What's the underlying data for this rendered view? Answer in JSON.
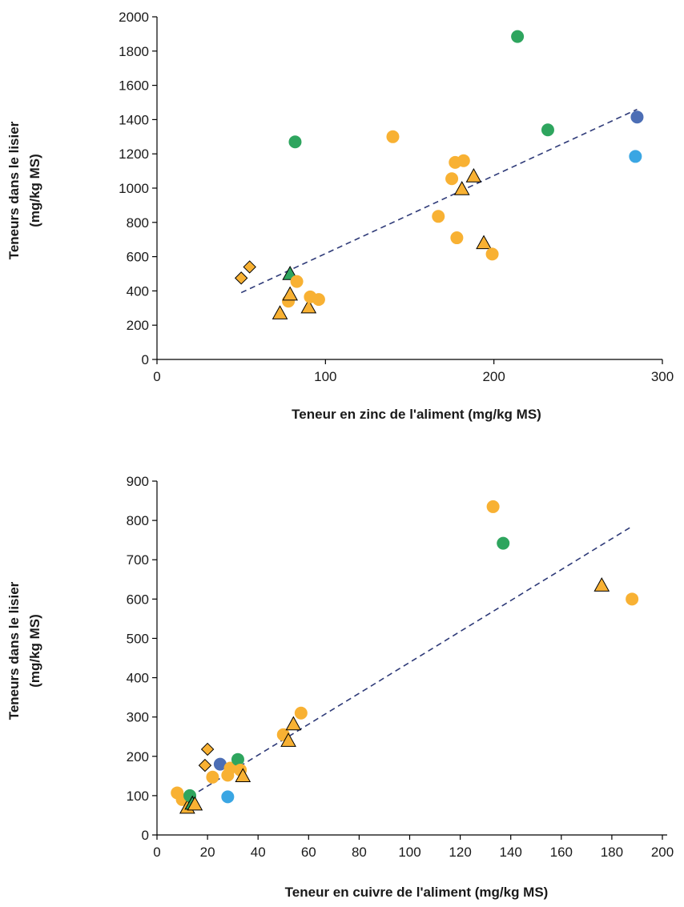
{
  "chart_data": [
    {
      "type": "scatter",
      "title": "",
      "xlabel": "Teneur en zinc de l'aliment (mg/kg MS)",
      "ylabel_line1": "Teneurs dans le lisier",
      "ylabel_line2": "(mg/kg MS)",
      "xlim": [
        0,
        300
      ],
      "ylim": [
        0,
        2000
      ],
      "xticks": [
        0,
        100,
        200,
        300
      ],
      "yticks": [
        0,
        200,
        400,
        600,
        800,
        1000,
        1200,
        1400,
        1600,
        1800,
        2000
      ],
      "grid": false,
      "colors": {
        "orange": "#f8b133",
        "green": "#2ea55e",
        "darkblue": "#4c6eb5",
        "lightblue": "#3aa6e3",
        "trend": "#2e3a78"
      },
      "trendline": {
        "x": [
          50,
          285
        ],
        "y": [
          390,
          1460
        ]
      },
      "points": [
        {
          "x": 50,
          "y": 475,
          "shape": "diamond",
          "color": "orange"
        },
        {
          "x": 55,
          "y": 540,
          "shape": "diamond",
          "color": "orange"
        },
        {
          "x": 73,
          "y": 270,
          "shape": "triangle",
          "color": "orange"
        },
        {
          "x": 78,
          "y": 340,
          "shape": "circle",
          "color": "orange"
        },
        {
          "x": 79,
          "y": 380,
          "shape": "triangle",
          "color": "orange"
        },
        {
          "x": 79,
          "y": 500,
          "shape": "triangle",
          "color": "green"
        },
        {
          "x": 82,
          "y": 1270,
          "shape": "circle",
          "color": "green"
        },
        {
          "x": 83,
          "y": 455,
          "shape": "circle",
          "color": "orange"
        },
        {
          "x": 90,
          "y": 305,
          "shape": "triangle",
          "color": "orange"
        },
        {
          "x": 91,
          "y": 365,
          "shape": "circle",
          "color": "orange"
        },
        {
          "x": 96,
          "y": 350,
          "shape": "circle",
          "color": "orange"
        },
        {
          "x": 140,
          "y": 1300,
          "shape": "circle",
          "color": "orange"
        },
        {
          "x": 167,
          "y": 835,
          "shape": "circle",
          "color": "orange"
        },
        {
          "x": 175,
          "y": 1055,
          "shape": "circle",
          "color": "orange"
        },
        {
          "x": 177,
          "y": 1150,
          "shape": "circle",
          "color": "orange"
        },
        {
          "x": 178,
          "y": 710,
          "shape": "circle",
          "color": "orange"
        },
        {
          "x": 181,
          "y": 995,
          "shape": "triangle",
          "color": "orange"
        },
        {
          "x": 182,
          "y": 1160,
          "shape": "circle",
          "color": "orange"
        },
        {
          "x": 188,
          "y": 1070,
          "shape": "triangle",
          "color": "orange"
        },
        {
          "x": 194,
          "y": 680,
          "shape": "triangle",
          "color": "orange"
        },
        {
          "x": 199,
          "y": 615,
          "shape": "circle",
          "color": "orange"
        },
        {
          "x": 214,
          "y": 1885,
          "shape": "circle",
          "color": "green"
        },
        {
          "x": 232,
          "y": 1340,
          "shape": "circle",
          "color": "green"
        },
        {
          "x": 284,
          "y": 1185,
          "shape": "circle",
          "color": "lightblue"
        },
        {
          "x": 285,
          "y": 1415,
          "shape": "circle",
          "color": "darkblue"
        }
      ]
    },
    {
      "type": "scatter",
      "title": "",
      "xlabel": "Teneur en cuivre de l'aliment (mg/kg MS)",
      "ylabel_line1": "Teneurs dans le lisier",
      "ylabel_line2": "(mg/kg MS)",
      "xlim": [
        0,
        200
      ],
      "ylim": [
        0,
        900
      ],
      "xticks": [
        0,
        20,
        40,
        60,
        80,
        100,
        120,
        140,
        160,
        180,
        200
      ],
      "yticks": [
        0,
        100,
        200,
        300,
        400,
        500,
        600,
        700,
        800,
        900
      ],
      "grid": false,
      "colors": {
        "orange": "#f8b133",
        "green": "#2ea55e",
        "darkblue": "#4c6eb5",
        "lightblue": "#3aa6e3",
        "trend": "#2e3a78"
      },
      "trendline": {
        "x": [
          10,
          188
        ],
        "y": [
          85,
          785
        ]
      },
      "points": [
        {
          "x": 8,
          "y": 107,
          "shape": "circle",
          "color": "orange"
        },
        {
          "x": 10,
          "y": 90,
          "shape": "circle",
          "color": "orange"
        },
        {
          "x": 12,
          "y": 70,
          "shape": "triangle",
          "color": "orange"
        },
        {
          "x": 13,
          "y": 100,
          "shape": "circle",
          "color": "green"
        },
        {
          "x": 14,
          "y": 80,
          "shape": "triangle",
          "color": "green"
        },
        {
          "x": 15,
          "y": 78,
          "shape": "triangle",
          "color": "orange"
        },
        {
          "x": 19,
          "y": 177,
          "shape": "diamond",
          "color": "orange"
        },
        {
          "x": 20,
          "y": 218,
          "shape": "diamond",
          "color": "orange"
        },
        {
          "x": 22,
          "y": 147,
          "shape": "circle",
          "color": "orange"
        },
        {
          "x": 25,
          "y": 180,
          "shape": "circle",
          "color": "darkblue"
        },
        {
          "x": 28,
          "y": 97,
          "shape": "circle",
          "color": "lightblue"
        },
        {
          "x": 28,
          "y": 152,
          "shape": "circle",
          "color": "orange"
        },
        {
          "x": 29,
          "y": 170,
          "shape": "circle",
          "color": "orange"
        },
        {
          "x": 32,
          "y": 192,
          "shape": "circle",
          "color": "green"
        },
        {
          "x": 33,
          "y": 165,
          "shape": "circle",
          "color": "orange"
        },
        {
          "x": 34,
          "y": 150,
          "shape": "triangle",
          "color": "orange"
        },
        {
          "x": 50,
          "y": 255,
          "shape": "circle",
          "color": "orange"
        },
        {
          "x": 52,
          "y": 240,
          "shape": "triangle",
          "color": "orange"
        },
        {
          "x": 54,
          "y": 282,
          "shape": "triangle",
          "color": "orange"
        },
        {
          "x": 57,
          "y": 310,
          "shape": "circle",
          "color": "orange"
        },
        {
          "x": 133,
          "y": 835,
          "shape": "circle",
          "color": "orange"
        },
        {
          "x": 137,
          "y": 742,
          "shape": "circle",
          "color": "green"
        },
        {
          "x": 176,
          "y": 635,
          "shape": "triangle",
          "color": "orange"
        },
        {
          "x": 188,
          "y": 600,
          "shape": "circle",
          "color": "orange"
        }
      ]
    }
  ]
}
